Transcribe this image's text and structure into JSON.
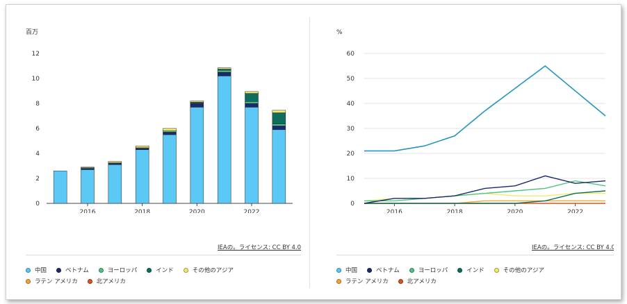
{
  "colors": {
    "china": "#5bc8f5",
    "vietnam": "#1b2a6b",
    "europe": "#4cc483",
    "india": "#0e6e5e",
    "other_asia": "#f3e96b",
    "latam": "#f0a72d",
    "north_america": "#d9531e",
    "share_line": "#2596be"
  },
  "attribution": "IEAの。ライセンス: CC BY 4.0",
  "legend": [
    {
      "label": "中国",
      "color": "#5bc8f5"
    },
    {
      "label": "ベトナム",
      "color": "#1b2a6b"
    },
    {
      "label": "ヨーロッパ",
      "color": "#4cc483"
    },
    {
      "label": "インド",
      "color": "#0e6e5e"
    },
    {
      "label": "その他のアジア",
      "color": "#f3e96b"
    },
    {
      "label": "ラテン アメリカ",
      "color": "#f0a72d"
    },
    {
      "label": "北アメリカ",
      "color": "#d9531e"
    }
  ],
  "chart_data": [
    {
      "type": "bar",
      "stacked": true,
      "unit_label": "百万",
      "categories": [
        "2015",
        "2016",
        "2017",
        "2018",
        "2019",
        "2020",
        "2021",
        "2022",
        "2023"
      ],
      "x_tick_labels": [
        "2016",
        "2018",
        "2020",
        "2022"
      ],
      "ylim": [
        0,
        12
      ],
      "y_ticks": [
        0,
        2,
        4,
        6,
        8,
        10,
        12
      ],
      "series": [
        {
          "name": "中国",
          "values": [
            2.6,
            2.7,
            3.1,
            4.3,
            5.5,
            7.7,
            10.2,
            7.7,
            5.9
          ]
        },
        {
          "name": "ベトナム",
          "values": [
            0,
            0.1,
            0.1,
            0.1,
            0.2,
            0.3,
            0.3,
            0.3,
            0.3
          ]
        },
        {
          "name": "ヨーロッパ",
          "values": [
            0,
            0.05,
            0.05,
            0.05,
            0.1,
            0.05,
            0.15,
            0.15,
            0.15
          ]
        },
        {
          "name": "インド",
          "values": [
            0,
            0,
            0,
            0,
            0,
            0.05,
            0.1,
            0.65,
            0.9
          ]
        },
        {
          "name": "その他のアジア",
          "values": [
            0,
            0.05,
            0.1,
            0.15,
            0.2,
            0.1,
            0.1,
            0.15,
            0.2
          ]
        },
        {
          "name": "ラテン アメリカ",
          "values": [
            0,
            0,
            0,
            0,
            0,
            0,
            0,
            0,
            0
          ]
        },
        {
          "name": "北アメリカ",
          "values": [
            0,
            0,
            0,
            0,
            0,
            0,
            0,
            0,
            0
          ]
        }
      ]
    },
    {
      "type": "line",
      "unit_label": "%",
      "x": [
        2015,
        2016,
        2017,
        2018,
        2019,
        2020,
        2021,
        2022,
        2023
      ],
      "x_tick_labels": [
        "2016",
        "2018",
        "2020",
        "2022"
      ],
      "xlim": [
        2015,
        2023
      ],
      "ylim": [
        0,
        60
      ],
      "y_ticks": [
        0,
        10,
        20,
        30,
        40,
        50,
        60
      ],
      "series": [
        {
          "name": "中国",
          "values": [
            21,
            21,
            23,
            27,
            37,
            46,
            55,
            45,
            35
          ]
        },
        {
          "name": "ベトナム",
          "values": [
            0,
            2,
            2,
            3,
            6,
            7,
            11,
            8,
            9
          ]
        },
        {
          "name": "ヨーロッパ",
          "values": [
            1,
            1,
            2,
            3,
            4,
            5,
            6,
            9,
            7
          ]
        },
        {
          "name": "インド",
          "values": [
            0,
            0,
            0,
            0,
            0,
            0,
            1,
            4,
            5
          ]
        },
        {
          "name": "その他のアジア",
          "values": [
            1,
            2,
            2,
            3,
            4,
            3,
            3,
            4,
            4
          ]
        },
        {
          "name": "ラテン アメリカ",
          "values": [
            0,
            0,
            0,
            0,
            1,
            1,
            1,
            1,
            1
          ]
        },
        {
          "name": "北アメリカ",
          "values": [
            0,
            0,
            0,
            0,
            0,
            0,
            0,
            0,
            0
          ]
        }
      ]
    }
  ]
}
